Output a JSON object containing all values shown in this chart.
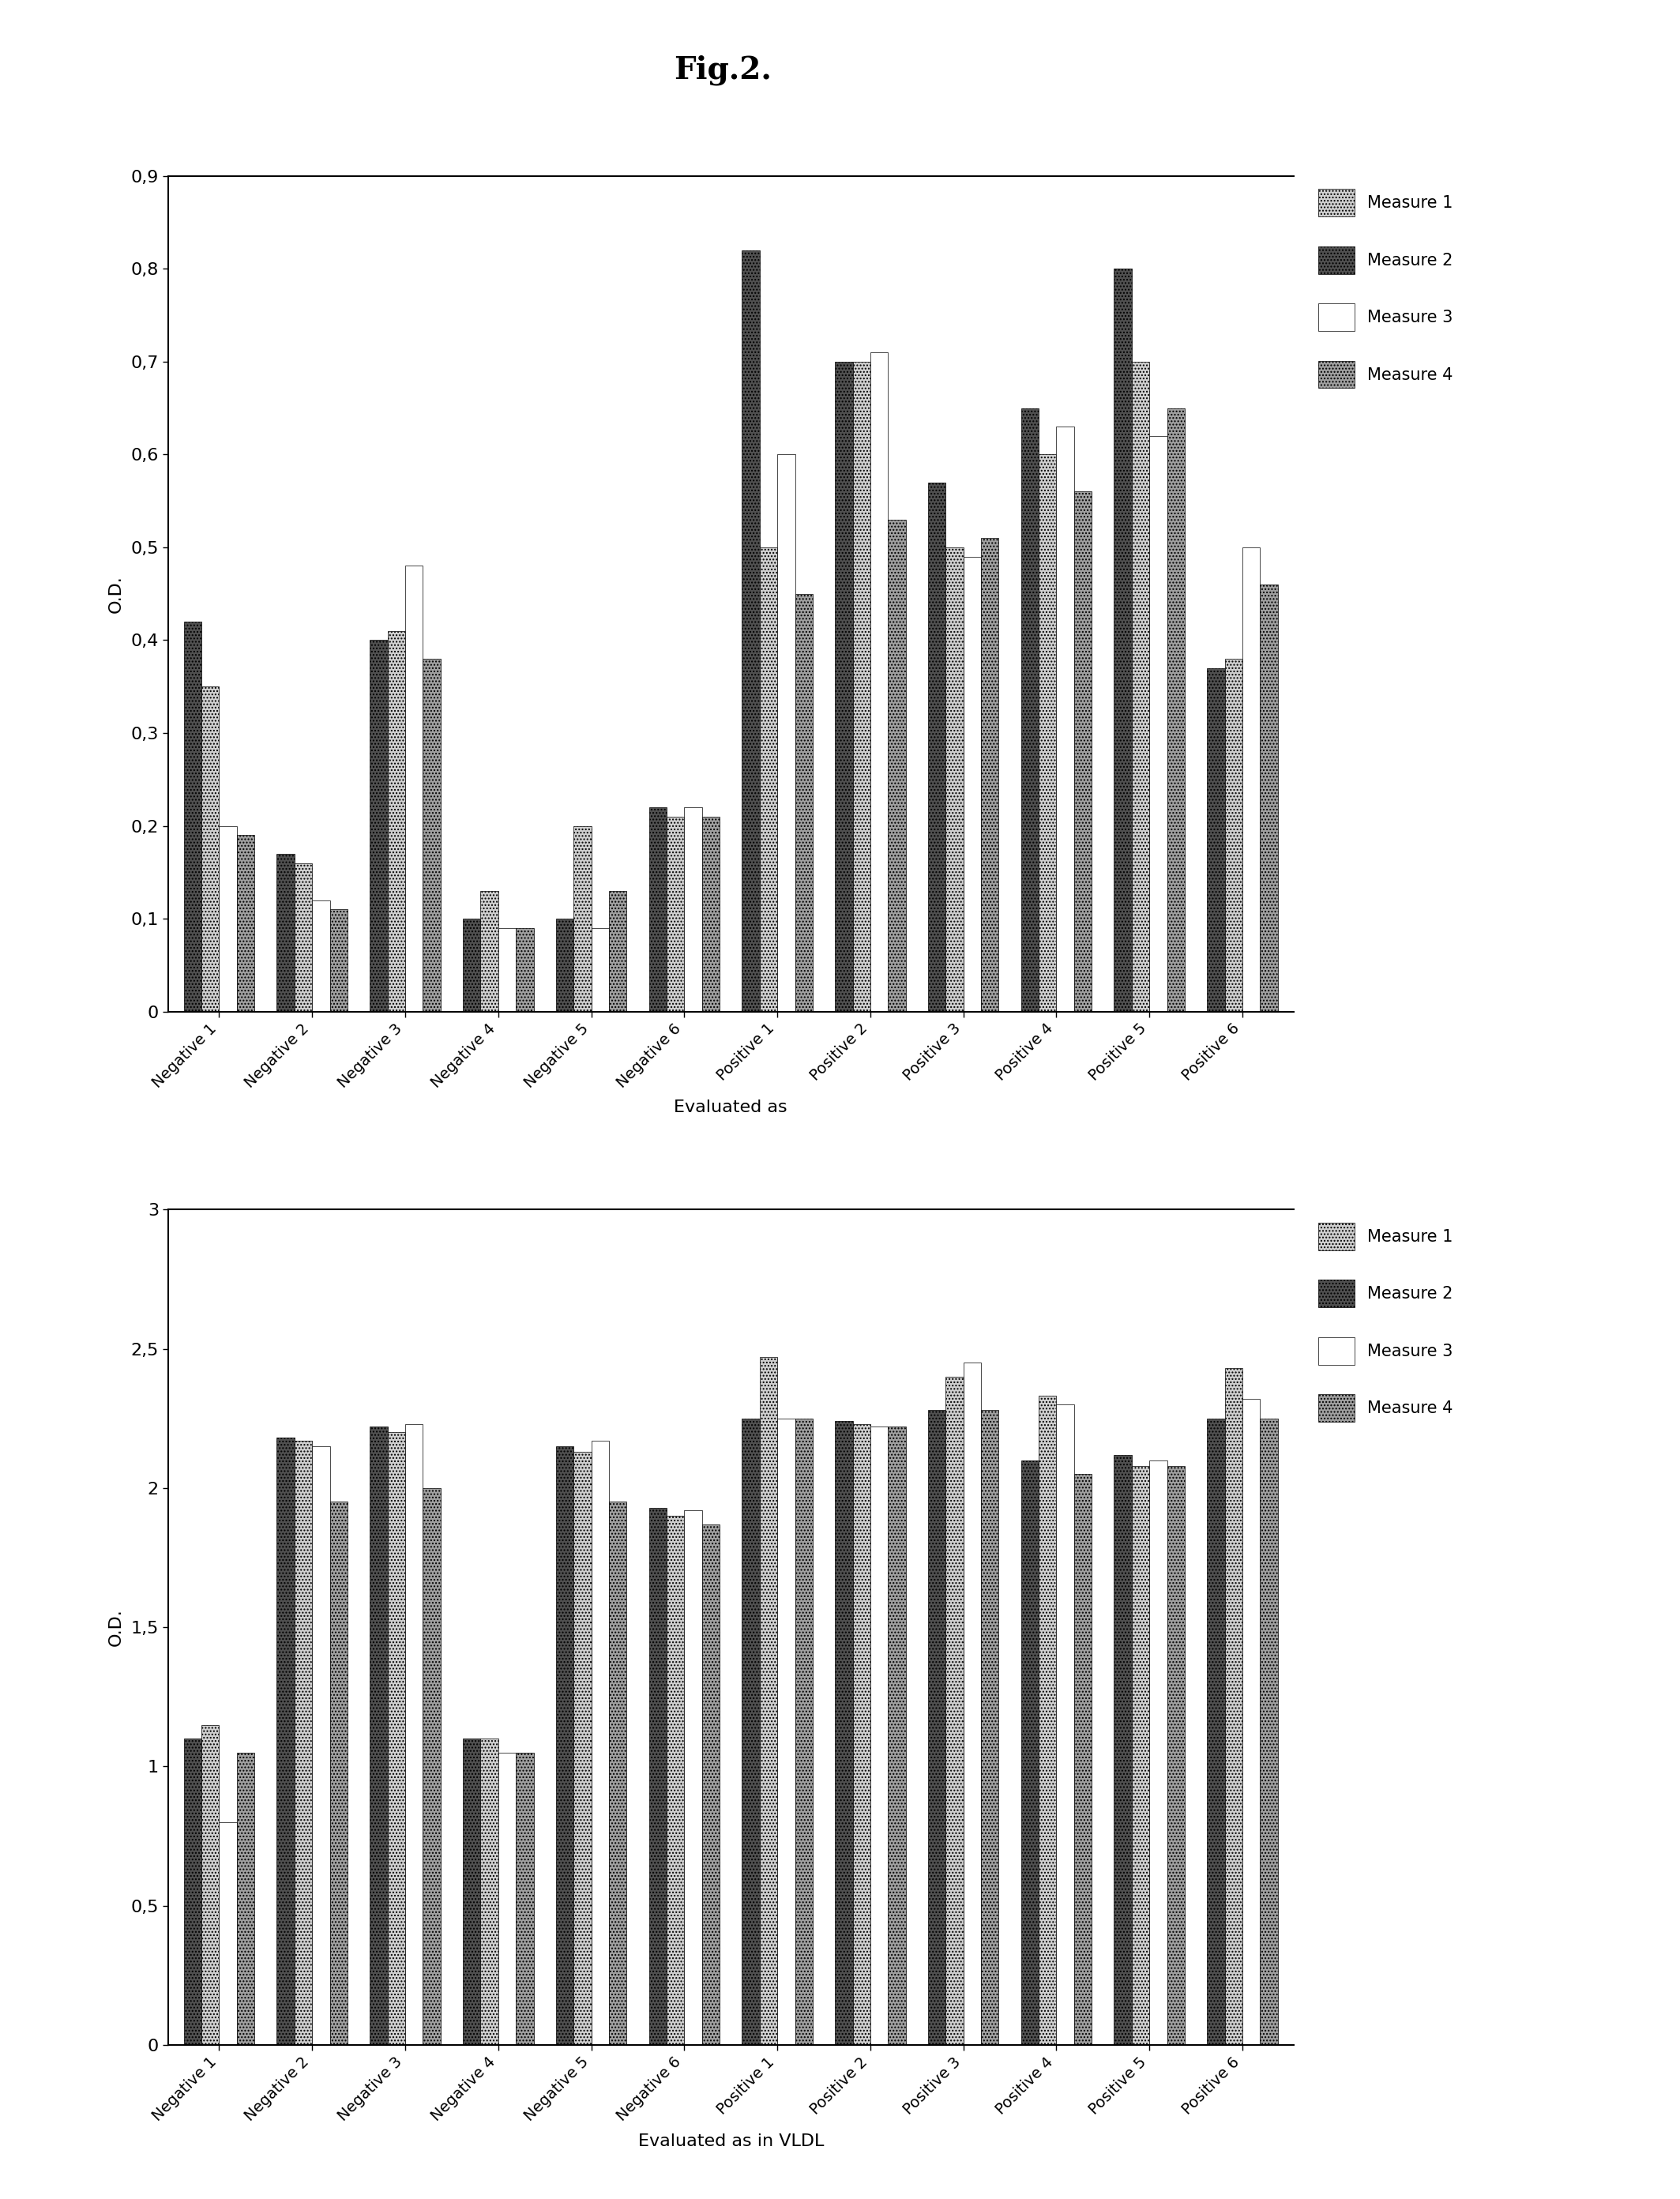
{
  "title": "Fig.2.",
  "chart1": {
    "categories": [
      "Negative 1",
      "Negative 2",
      "Negative 3",
      "Negative 4",
      "Negative 5",
      "Negative 6",
      "Positive 1",
      "Positive 2",
      "Positive 3",
      "Positive 4",
      "Positive 5",
      "Positive 6"
    ],
    "measure1": [
      0.35,
      0.16,
      0.41,
      0.13,
      0.2,
      0.21,
      0.5,
      0.7,
      0.5,
      0.6,
      0.7,
      0.38
    ],
    "measure2": [
      0.42,
      0.17,
      0.4,
      0.1,
      0.1,
      0.22,
      0.82,
      0.7,
      0.57,
      0.65,
      0.8,
      0.37
    ],
    "measure3": [
      0.2,
      0.12,
      0.48,
      0.09,
      0.09,
      0.22,
      0.6,
      0.71,
      0.49,
      0.63,
      0.62,
      0.5
    ],
    "measure4": [
      0.19,
      0.11,
      0.38,
      0.09,
      0.13,
      0.21,
      0.45,
      0.53,
      0.51,
      0.56,
      0.65,
      0.46
    ],
    "ylabel": "O.D.",
    "xlabel": "Evaluated as",
    "ylim": [
      0,
      0.9
    ],
    "yticks": [
      0,
      0.1,
      0.2,
      0.3,
      0.4,
      0.5,
      0.6,
      0.7,
      0.8,
      0.9
    ]
  },
  "chart2": {
    "categories": [
      "Negative 1",
      "Negative 2",
      "Negative 3",
      "Negative 4",
      "Negative 5",
      "Negative 6",
      "Positive 1",
      "Positive 2",
      "Positive 3",
      "Positive 4",
      "Positive 5",
      "Positive 6"
    ],
    "measure1": [
      1.15,
      2.17,
      2.2,
      1.1,
      2.13,
      1.9,
      2.47,
      2.23,
      2.4,
      2.33,
      2.08,
      2.43
    ],
    "measure2": [
      1.1,
      2.18,
      2.22,
      1.1,
      2.15,
      1.93,
      2.25,
      2.24,
      2.28,
      2.1,
      2.12,
      2.25
    ],
    "measure3": [
      0.8,
      2.15,
      2.23,
      1.05,
      2.17,
      1.92,
      2.25,
      2.22,
      2.45,
      2.3,
      2.1,
      2.32
    ],
    "measure4": [
      1.05,
      1.95,
      2.0,
      1.05,
      1.95,
      1.87,
      2.25,
      2.22,
      2.28,
      2.05,
      2.08,
      2.25
    ],
    "ylabel": "O.D.",
    "xlabel": "Evaluated as in VLDL",
    "ylim": [
      0,
      3.0
    ],
    "yticks": [
      0,
      0.5,
      1.0,
      1.5,
      2.0,
      2.5,
      3.0
    ]
  },
  "bar_order": [
    "measure2",
    "measure1",
    "measure3",
    "measure4"
  ],
  "bar_configs": [
    {
      "key": "measure1",
      "color": "#d0d0d0",
      "hatch": "....",
      "edgecolor": "black",
      "label": "Measure 1"
    },
    {
      "key": "measure2",
      "color": "#505050",
      "hatch": "....",
      "edgecolor": "black",
      "label": "Measure 2"
    },
    {
      "key": "measure3",
      "color": "#ffffff",
      "hatch": "",
      "edgecolor": "black",
      "label": "Measure 3"
    },
    {
      "key": "measure4",
      "color": "#a0a0a0",
      "hatch": "....",
      "edgecolor": "black",
      "label": "Measure 4"
    }
  ]
}
